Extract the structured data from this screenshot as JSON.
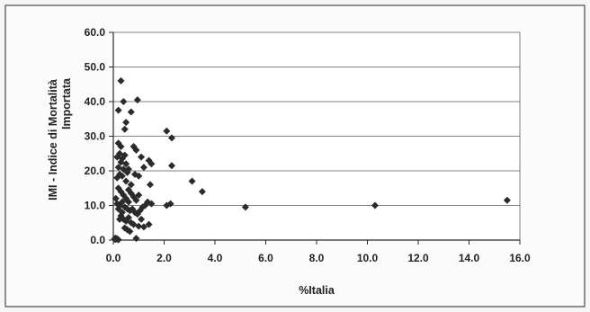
{
  "chart_data": {
    "type": "scatter",
    "title": "",
    "xlabel": "%Italia",
    "ylabel_lines": [
      "IMI - Indice di Mortalità",
      "Importata"
    ],
    "xlim": [
      0,
      16
    ],
    "ylim": [
      0,
      60
    ],
    "x_ticks": [
      0,
      2,
      4,
      6,
      8,
      10,
      12,
      14,
      16
    ],
    "y_ticks": [
      0,
      10,
      20,
      30,
      40,
      50,
      60
    ],
    "x_tick_labels": [
      "0.0",
      "2.0",
      "4.0",
      "6.0",
      "8.0",
      "10.0",
      "12.0",
      "14.0",
      "16.0"
    ],
    "y_tick_labels": [
      "0.0",
      "10.0",
      "20.0",
      "30.0",
      "40.0",
      "50.0",
      "60.0"
    ],
    "grid": "horizontal",
    "legend": "none",
    "marker": "diamond",
    "marker_color": "#2b2b2b",
    "series": [
      {
        "points": [
          [
            0.05,
            0.3
          ],
          [
            0.1,
            0.2
          ],
          [
            0.15,
            0.4
          ],
          [
            0.2,
            0.1
          ],
          [
            0.08,
            0.6
          ],
          [
            0.3,
            46.0
          ],
          [
            0.2,
            37.5
          ],
          [
            0.4,
            40.0
          ],
          [
            0.95,
            40.5
          ],
          [
            0.7,
            37.0
          ],
          [
            0.5,
            34.0
          ],
          [
            0.45,
            32.0
          ],
          [
            0.2,
            28.0
          ],
          [
            0.3,
            27.0
          ],
          [
            0.25,
            25.0
          ],
          [
            0.15,
            24.0
          ],
          [
            0.35,
            23.5
          ],
          [
            0.45,
            24.5
          ],
          [
            0.5,
            22.0
          ],
          [
            0.3,
            22.5
          ],
          [
            0.2,
            21.0
          ],
          [
            0.4,
            20.5
          ],
          [
            0.55,
            19.5
          ],
          [
            0.6,
            20.5
          ],
          [
            0.25,
            19.0
          ],
          [
            0.15,
            18.0
          ],
          [
            0.35,
            18.5
          ],
          [
            0.5,
            17.0
          ],
          [
            0.7,
            16.0
          ],
          [
            0.8,
            27.0
          ],
          [
            0.9,
            26.0
          ],
          [
            0.85,
            19.0
          ],
          [
            1.0,
            18.5
          ],
          [
            1.1,
            24.0
          ],
          [
            1.2,
            21.0
          ],
          [
            1.4,
            23.0
          ],
          [
            1.5,
            22.0
          ],
          [
            1.45,
            16.0
          ],
          [
            2.1,
            31.5
          ],
          [
            2.3,
            29.5
          ],
          [
            2.3,
            21.5
          ],
          [
            3.1,
            17.0
          ],
          [
            3.5,
            14.0
          ],
          [
            5.2,
            9.5
          ],
          [
            10.3,
            10.0
          ],
          [
            15.5,
            11.5
          ],
          [
            0.2,
            15.0
          ],
          [
            0.3,
            14.0
          ],
          [
            0.4,
            13.0
          ],
          [
            0.5,
            12.0
          ],
          [
            0.6,
            14.5
          ],
          [
            0.7,
            13.5
          ],
          [
            0.8,
            12.5
          ],
          [
            0.9,
            11.5
          ],
          [
            1.0,
            13.0
          ],
          [
            0.1,
            12.0
          ],
          [
            0.15,
            10.5
          ],
          [
            0.25,
            10.0
          ],
          [
            0.35,
            11.0
          ],
          [
            0.45,
            9.5
          ],
          [
            0.55,
            9.0
          ],
          [
            0.65,
            8.5
          ],
          [
            0.75,
            9.0
          ],
          [
            0.85,
            8.0
          ],
          [
            0.95,
            7.5
          ],
          [
            1.05,
            8.5
          ],
          [
            1.15,
            9.5
          ],
          [
            1.25,
            10.0
          ],
          [
            1.35,
            11.0
          ],
          [
            1.5,
            10.5
          ],
          [
            0.3,
            7.0
          ],
          [
            0.4,
            6.0
          ],
          [
            0.5,
            5.5
          ],
          [
            0.6,
            6.5
          ],
          [
            0.7,
            5.0
          ],
          [
            0.8,
            4.5
          ],
          [
            1.0,
            4.0
          ],
          [
            1.2,
            3.8
          ],
          [
            1.4,
            4.5
          ],
          [
            0.55,
            3.0
          ],
          [
            0.65,
            2.5
          ],
          [
            0.9,
            0.5
          ],
          [
            2.1,
            10.0
          ],
          [
            2.25,
            10.5
          ],
          [
            0.35,
            8.0
          ],
          [
            0.25,
            6.0
          ],
          [
            0.45,
            3.5
          ],
          [
            1.1,
            6.0
          ],
          [
            0.6,
            11.0
          ],
          [
            0.2,
            9.0
          ]
        ]
      }
    ]
  }
}
